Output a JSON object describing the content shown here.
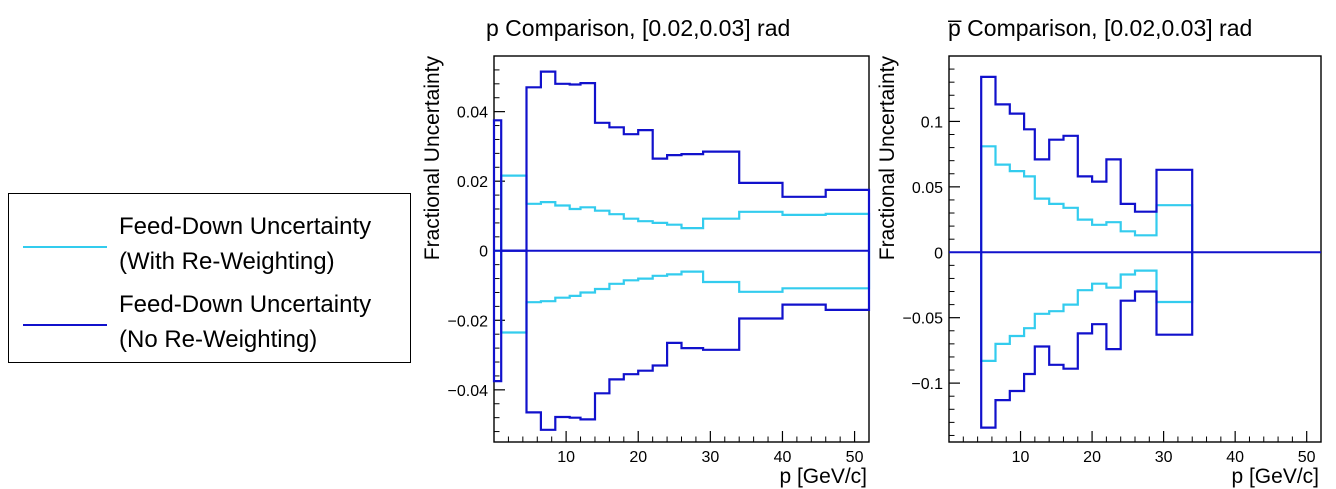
{
  "legend": {
    "entries": [
      {
        "line1": "Feed-Down Uncertainty",
        "line2": "(With Re-Weighting)",
        "color": "#33ccee"
      },
      {
        "line1": "Feed-Down Uncertainty",
        "line2": "(No Re-Weighting)",
        "color": "#1111cc"
      }
    ]
  },
  "chart_data": [
    {
      "type": "line",
      "style": "step-histogram",
      "title": "p Comparison, [0.02,0.03] rad",
      "xlabel": "p [GeV/c]",
      "ylabel": "Fractional Uncertainty",
      "xlim": [
        0,
        52
      ],
      "ylim": [
        -0.055,
        0.056
      ],
      "xticks": [
        10,
        20,
        30,
        40,
        50
      ],
      "yticks": [
        -0.04,
        -0.02,
        0,
        0.02,
        0.04
      ],
      "ytick_labels": [
        "−0.04",
        "−0.02",
        "0",
        "0.02",
        "0.04"
      ],
      "grid": false,
      "bin_edges": [
        0,
        1,
        4.5,
        6.5,
        8.5,
        10.5,
        12,
        14,
        16,
        18,
        20,
        22,
        24,
        26,
        29,
        34,
        40,
        46,
        52
      ],
      "series": [
        {
          "name": "Feed-Down Uncertainty (With Re-Weighting)",
          "color": "#33ccee",
          "upper": [
            0,
            0.0216,
            0.0135,
            0.014,
            0.013,
            0.012,
            0.0125,
            0.0115,
            0.0105,
            0.0092,
            0.0085,
            0.008,
            0.0075,
            0.0065,
            0.0092,
            0.0112,
            0.0103,
            0.0106
          ],
          "lower": [
            0,
            -0.0235,
            -0.0148,
            -0.0145,
            -0.0135,
            -0.013,
            -0.012,
            -0.011,
            -0.0095,
            -0.0085,
            -0.008,
            -0.0072,
            -0.0068,
            -0.006,
            -0.009,
            -0.0118,
            -0.0108,
            -0.0108
          ]
        },
        {
          "name": "Feed-Down Uncertainty (No Re-Weighting)",
          "color": "#1111cc",
          "upper": [
            0.0375,
            0,
            0.047,
            0.0515,
            0.048,
            0.0478,
            0.0482,
            0.0368,
            0.0355,
            0.0335,
            0.0347,
            0.0265,
            0.0275,
            0.0278,
            0.0285,
            0.0195,
            0.0155,
            0.0175
          ],
          "lower": [
            -0.0375,
            0,
            -0.0465,
            -0.0515,
            -0.0478,
            -0.048,
            -0.0485,
            -0.041,
            -0.037,
            -0.0355,
            -0.0345,
            -0.033,
            -0.0265,
            -0.028,
            -0.0285,
            -0.0195,
            -0.0155,
            -0.017
          ]
        }
      ]
    },
    {
      "type": "line",
      "style": "step-histogram",
      "title": "p̅ Comparison, [0.02,0.03] rad",
      "xlabel": "p [GeV/c]",
      "ylabel": "Fractional Uncertainty",
      "xlim": [
        0,
        52
      ],
      "ylim": [
        -0.145,
        0.15
      ],
      "xticks": [
        10,
        20,
        30,
        40,
        50
      ],
      "yticks": [
        -0.1,
        -0.05,
        0,
        0.05,
        0.1
      ],
      "ytick_labels": [
        "−0.1",
        "−0.05",
        "0",
        "0.05",
        "0.1"
      ],
      "grid": false,
      "bin_edges": [
        4.5,
        6.5,
        8.5,
        10.5,
        12,
        14,
        16,
        18,
        20,
        22,
        24,
        26,
        29,
        34
      ],
      "series": [
        {
          "name": "Feed-Down Uncertainty (With Re-Weighting)",
          "color": "#33ccee",
          "upper": [
            0.081,
            0.067,
            0.062,
            0.058,
            0.041,
            0.037,
            0.034,
            0.025,
            0.021,
            0.023,
            0.016,
            0.013,
            0.036
          ],
          "lower": [
            -0.083,
            -0.07,
            -0.064,
            -0.058,
            -0.047,
            -0.045,
            -0.04,
            -0.029,
            -0.024,
            -0.027,
            -0.017,
            -0.014,
            -0.038
          ]
        },
        {
          "name": "Feed-Down Uncertainty (No Re-Weighting)",
          "color": "#1111cc",
          "upper": [
            0.134,
            0.113,
            0.106,
            0.094,
            0.071,
            0.086,
            0.089,
            0.058,
            0.054,
            0.071,
            0.037,
            0.031,
            0.063
          ],
          "lower": [
            -0.134,
            -0.113,
            -0.106,
            -0.093,
            -0.072,
            -0.086,
            -0.089,
            -0.062,
            -0.055,
            -0.074,
            -0.037,
            -0.03,
            -0.063
          ]
        }
      ]
    }
  ]
}
